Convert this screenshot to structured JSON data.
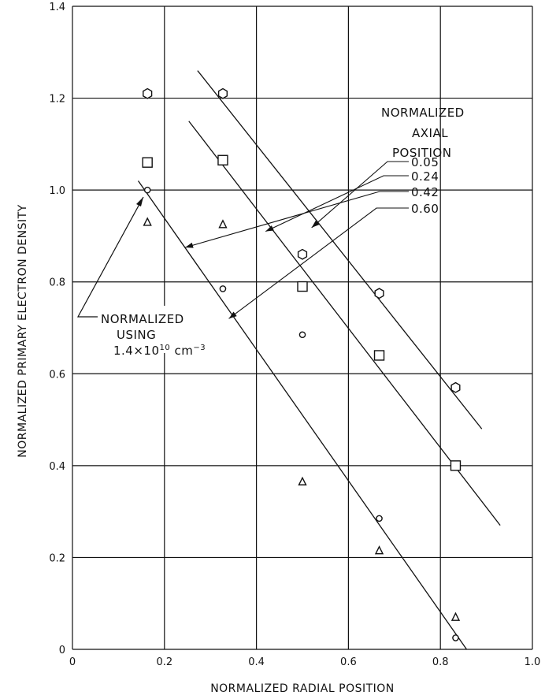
{
  "chart_data": {
    "type": "scatter",
    "xlabel": "NORMALIZED RADIAL POSITION",
    "ylabel": "NORMALIZED PRIMARY ELECTRON DENSITY",
    "xlim": [
      0,
      1.0
    ],
    "ylim": [
      0,
      1.4
    ],
    "x_ticks": [
      "0",
      "0.2",
      "0.4",
      "0.6",
      "0.8",
      "1.0"
    ],
    "y_ticks": [
      "0",
      "0.2",
      "0.4",
      "0.6",
      "0.8",
      "1.0",
      "1.2",
      "1.4"
    ],
    "grid": true,
    "legend": {
      "title_lines": [
        "NORMALIZED",
        "AXIAL",
        "POSITION"
      ],
      "placement": "top-right"
    },
    "series": [
      {
        "name": "0.05",
        "marker": "hexagon",
        "points": [
          [
            0.163,
            1.21
          ],
          [
            0.327,
            1.21
          ],
          [
            0.5,
            0.86
          ],
          [
            0.667,
            0.775
          ],
          [
            0.833,
            0.57
          ]
        ],
        "fit": [
          [
            0.272,
            1.26
          ],
          [
            0.89,
            0.48
          ]
        ]
      },
      {
        "name": "0.24",
        "marker": "square",
        "points": [
          [
            0.163,
            1.06
          ],
          [
            0.327,
            1.065
          ],
          [
            0.5,
            0.79
          ],
          [
            0.667,
            0.64
          ],
          [
            0.833,
            0.4
          ]
        ],
        "fit": [
          [
            0.253,
            1.15
          ],
          [
            0.93,
            0.27
          ]
        ]
      },
      {
        "name": "0.42",
        "marker": "triangle",
        "points": [
          [
            0.163,
            0.93
          ],
          [
            0.327,
            0.925
          ],
          [
            0.5,
            0.365
          ],
          [
            0.667,
            0.215
          ],
          [
            0.833,
            0.07
          ]
        ]
      },
      {
        "name": "0.60",
        "marker": "circle",
        "points": [
          [
            0.163,
            1.0
          ],
          [
            0.327,
            0.785
          ],
          [
            0.5,
            0.685
          ],
          [
            0.667,
            0.285
          ],
          [
            0.833,
            0.025
          ]
        ],
        "fit": [
          [
            0.143,
            1.02
          ],
          [
            0.857,
            0.0
          ]
        ]
      }
    ],
    "annotation": {
      "lines": [
        "NORMALIZED",
        "USING"
      ],
      "formula_base": "1.4×10",
      "formula_exp": "10",
      "formula_unit": " cm",
      "formula_unit_exp": "−3",
      "target": [
        0.163,
        1.0
      ]
    },
    "legend_arrows": [
      {
        "series": "0.05",
        "to": [
          0.52,
          0.918
        ]
      },
      {
        "series": "0.24",
        "to": [
          0.42,
          0.91
        ]
      },
      {
        "series": "0.42",
        "to": [
          0.245,
          0.875
        ]
      },
      {
        "series": "0.60",
        "to": [
          0.34,
          0.72
        ]
      }
    ]
  }
}
